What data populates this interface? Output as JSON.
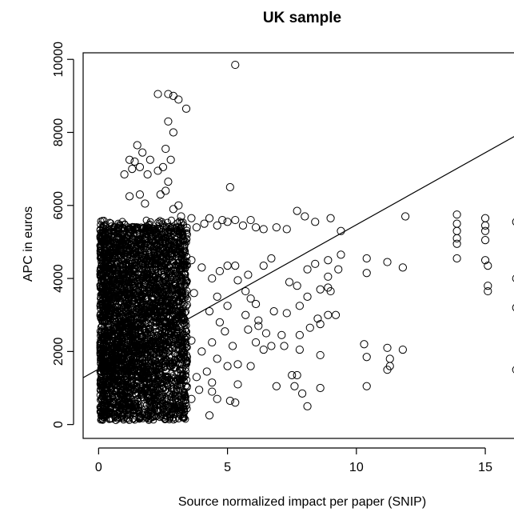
{
  "chart_data": {
    "type": "scatter",
    "title": "UK sample",
    "xlabel": "Source normalized impact per paper (SNIP)",
    "ylabel": "APC in euros",
    "xlim": [
      -0.6,
      16.3
    ],
    "ylim": [
      -380,
      10180
    ],
    "x_ticks": [
      0,
      5,
      10,
      15
    ],
    "x_tick_labels": [
      "0",
      "5",
      "10",
      "15"
    ],
    "y_ticks": [
      0,
      2000,
      4000,
      6000,
      8000,
      10000
    ],
    "y_tick_labels": [
      "0",
      "2000",
      "4000",
      "6000",
      "8000",
      "10000"
    ],
    "grid": false,
    "legend": "none",
    "marker": "open-circle",
    "fit_line": {
      "intercept": 1520,
      "slope": 395
    },
    "points": [
      [
        5.3,
        9850
      ],
      [
        2.3,
        9050
      ],
      [
        2.7,
        9050
      ],
      [
        2.9,
        9000
      ],
      [
        3.1,
        8900
      ],
      [
        3.4,
        8650
      ],
      [
        2.7,
        8300
      ],
      [
        2.9,
        8000
      ],
      [
        2.6,
        7550
      ],
      [
        1.5,
        7650
      ],
      [
        1.7,
        7450
      ],
      [
        2.8,
        7250
      ],
      [
        1.2,
        7250
      ],
      [
        1.4,
        7200
      ],
      [
        2.0,
        7250
      ],
      [
        1.3,
        7000
      ],
      [
        1.6,
        7050
      ],
      [
        2.5,
        7050
      ],
      [
        2.3,
        6950
      ],
      [
        1.9,
        6850
      ],
      [
        1.0,
        6850
      ],
      [
        2.7,
        6650
      ],
      [
        2.6,
        6400
      ],
      [
        5.1,
        6500
      ],
      [
        2.4,
        6300
      ],
      [
        1.2,
        6250
      ],
      [
        1.6,
        6300
      ],
      [
        3.1,
        6000
      ],
      [
        2.9,
        5900
      ],
      [
        1.8,
        6050
      ],
      [
        3.2,
        5700
      ],
      [
        3.6,
        5650
      ],
      [
        3.8,
        5400
      ],
      [
        4.1,
        5500
      ],
      [
        4.3,
        5650
      ],
      [
        4.6,
        5450
      ],
      [
        4.8,
        5600
      ],
      [
        5.0,
        5550
      ],
      [
        5.3,
        5600
      ],
      [
        5.6,
        5450
      ],
      [
        5.9,
        5600
      ],
      [
        6.1,
        5400
      ],
      [
        6.4,
        5350
      ],
      [
        6.9,
        5400
      ],
      [
        7.3,
        5350
      ],
      [
        7.7,
        5850
      ],
      [
        8.0,
        5700
      ],
      [
        8.4,
        5550
      ],
      [
        9.0,
        5650
      ],
      [
        9.4,
        5300
      ],
      [
        11.9,
        5700
      ],
      [
        13.9,
        5750
      ],
      [
        13.9,
        5500
      ],
      [
        13.9,
        5300
      ],
      [
        13.9,
        5100
      ],
      [
        15.0,
        5650
      ],
      [
        15.0,
        5450
      ],
      [
        15.0,
        5300
      ],
      [
        16.2,
        5550
      ],
      [
        15.0,
        5050
      ],
      [
        13.9,
        4950
      ],
      [
        13.9,
        4550
      ],
      [
        15.0,
        4500
      ],
      [
        15.1,
        4350
      ],
      [
        15.1,
        3800
      ],
      [
        15.1,
        3650
      ],
      [
        16.2,
        4000
      ],
      [
        16.2,
        3200
      ],
      [
        16.2,
        1500
      ],
      [
        11.2,
        4450
      ],
      [
        11.8,
        4300
      ],
      [
        10.4,
        4550
      ],
      [
        10.4,
        4150
      ],
      [
        9.4,
        4650
      ],
      [
        9.3,
        4250
      ],
      [
        8.9,
        4500
      ],
      [
        8.9,
        4050
      ],
      [
        8.4,
        4400
      ],
      [
        8.1,
        4250
      ],
      [
        7.7,
        3800
      ],
      [
        7.4,
        3900
      ],
      [
        8.6,
        3700
      ],
      [
        8.9,
        3750
      ],
      [
        9.0,
        3650
      ],
      [
        8.1,
        3500
      ],
      [
        7.8,
        3250
      ],
      [
        7.3,
        3050
      ],
      [
        6.8,
        3100
      ],
      [
        8.5,
        2900
      ],
      [
        8.9,
        3000
      ],
      [
        9.2,
        3000
      ],
      [
        8.2,
        2650
      ],
      [
        7.1,
        2450
      ],
      [
        7.2,
        2150
      ],
      [
        6.7,
        2150
      ],
      [
        6.4,
        2050
      ],
      [
        7.8,
        2450
      ],
      [
        8.6,
        2750
      ],
      [
        7.8,
        2050
      ],
      [
        6.1,
        2250
      ],
      [
        6.2,
        2700
      ],
      [
        5.8,
        2600
      ],
      [
        10.3,
        2200
      ],
      [
        10.4,
        1850
      ],
      [
        11.2,
        2100
      ],
      [
        11.3,
        1800
      ],
      [
        11.8,
        2050
      ],
      [
        11.2,
        1500
      ],
      [
        11.3,
        1600
      ],
      [
        8.6,
        1900
      ],
      [
        7.5,
        1350
      ],
      [
        7.7,
        1350
      ],
      [
        7.6,
        1050
      ],
      [
        8.6,
        1000
      ],
      [
        6.9,
        1050
      ],
      [
        7.9,
        850
      ],
      [
        8.1,
        500
      ],
      [
        10.4,
        1050
      ],
      [
        5.0,
        1600
      ],
      [
        5.4,
        1650
      ],
      [
        5.4,
        1100
      ],
      [
        5.1,
        650
      ],
      [
        5.3,
        600
      ],
      [
        4.6,
        700
      ],
      [
        4.4,
        900
      ],
      [
        3.3,
        200
      ],
      [
        3.6,
        700
      ],
      [
        3.8,
        1300
      ],
      [
        3.4,
        1900
      ],
      [
        3.6,
        2300
      ],
      [
        3.7,
        3600
      ],
      [
        3.6,
        4500
      ],
      [
        4.0,
        4300
      ],
      [
        4.4,
        4000
      ],
      [
        4.7,
        4200
      ],
      [
        5.0,
        4350
      ],
      [
        5.3,
        4350
      ],
      [
        5.8,
        4100
      ],
      [
        5.4,
        3950
      ],
      [
        5.7,
        3650
      ],
      [
        5.0,
        3250
      ],
      [
        4.6,
        3500
      ],
      [
        4.3,
        3100
      ],
      [
        4.7,
        2800
      ],
      [
        4.9,
        2550
      ],
      [
        5.2,
        2150
      ],
      [
        4.4,
        2250
      ],
      [
        4.0,
        2000
      ],
      [
        5.7,
        3000
      ],
      [
        5.9,
        3450
      ],
      [
        6.1,
        3300
      ],
      [
        6.4,
        4350
      ],
      [
        6.7,
        4550
      ],
      [
        6.2,
        2850
      ],
      [
        6.5,
        2500
      ],
      [
        4.2,
        1450
      ],
      [
        4.6,
        1800
      ],
      [
        3.9,
        950
      ],
      [
        4.3,
        250
      ],
      [
        4.4,
        1150
      ],
      [
        5.9,
        1600
      ]
    ]
  }
}
